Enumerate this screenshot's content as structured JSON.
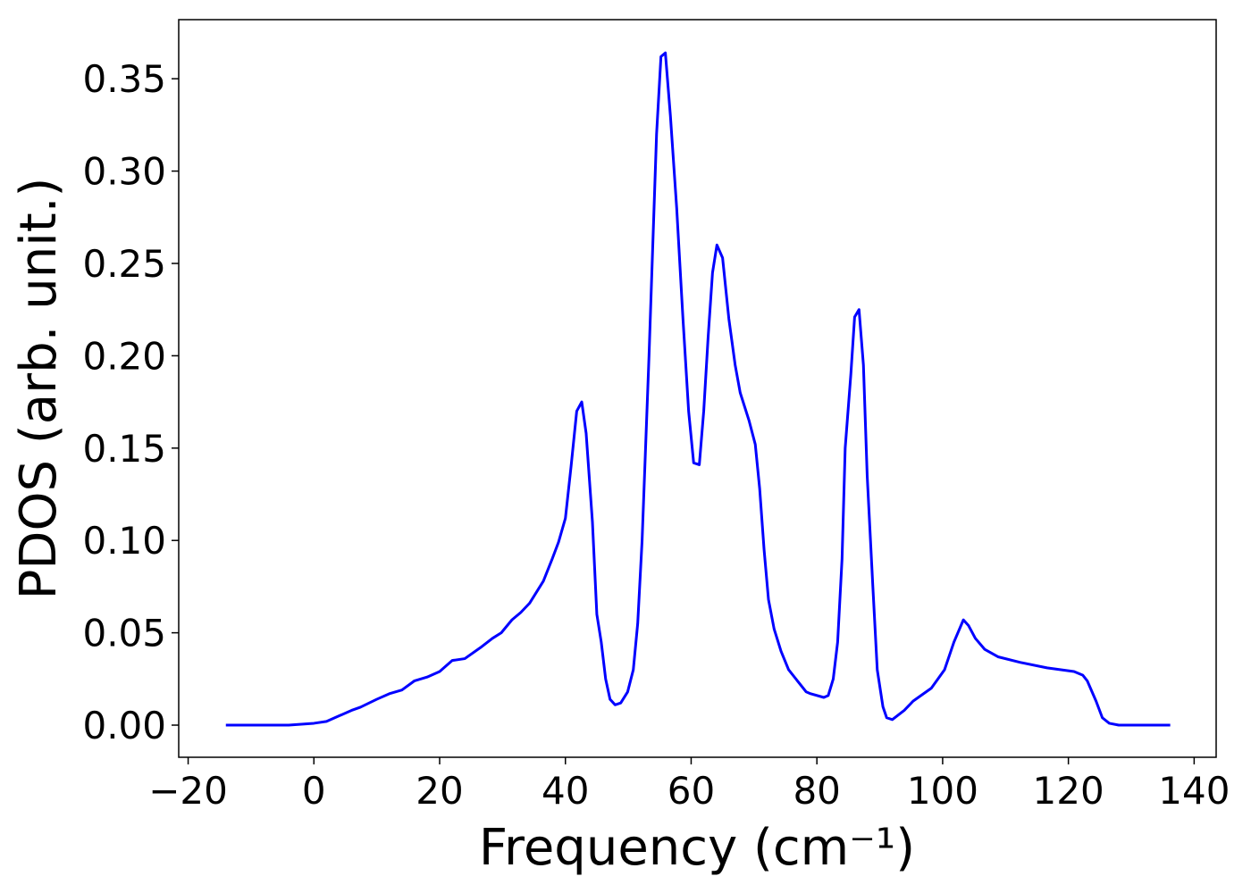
{
  "chart_data": {
    "type": "line",
    "xlabel": "Frequency (cm⁻¹)",
    "ylabel": "PDOS (arb. unit.)",
    "xlim": [
      -21.5,
      143.5
    ],
    "ylim": [
      -0.0174,
      0.382
    ],
    "xticks": [
      {
        "value": -20,
        "label": "−20"
      },
      0,
      20,
      40,
      60,
      80,
      100,
      120,
      140
    ],
    "yticks": [
      {
        "value": 0,
        "label": "0.00"
      },
      {
        "value": 0.05,
        "label": "0.05"
      },
      {
        "value": 0.1,
        "label": "0.10"
      },
      {
        "value": 0.15,
        "label": "0.15"
      },
      {
        "value": 0.2,
        "label": "0.20"
      },
      {
        "value": 0.25,
        "label": "0.25"
      },
      {
        "value": 0.3,
        "label": "0.30"
      },
      {
        "value": 0.35,
        "label": "0.35"
      }
    ],
    "x": [
      -14,
      -4,
      0,
      2,
      4,
      6,
      7.4,
      10,
      12,
      14,
      16,
      18,
      20,
      22,
      24,
      26.5,
      28.4,
      29.8,
      31.5,
      32.9,
      34.3,
      36.5,
      37.9,
      38.9,
      40,
      40.9,
      41.8,
      42.6,
      43.3,
      44.3,
      45,
      45.7,
      46.4,
      47.1,
      47.9,
      48.8,
      49.9,
      50.8,
      51.5,
      52.2,
      53.3,
      54.5,
      55.2,
      55.9,
      56.7,
      57.7,
      58.7,
      59.6,
      60.4,
      61.3,
      62,
      62.7,
      63.4,
      64.1,
      65,
      66,
      67,
      67.8,
      69.2,
      70.2,
      70.9,
      71.6,
      72.3,
      73.2,
      74.3,
      75.5,
      76.9,
      78.3,
      79,
      81.1,
      81.8,
      82.6,
      83.3,
      84,
      84.5,
      85.4,
      86,
      86.7,
      87.4,
      88,
      88.9,
      89.6,
      90.5,
      91.1,
      92,
      93.9,
      95.3,
      98.2,
      100.3,
      101.8,
      103.3,
      104.1,
      105.2,
      106.7,
      108.8,
      112.3,
      116.6,
      120.9,
      122.3,
      123,
      124.4,
      125.4,
      126.5,
      128,
      136.2
    ],
    "series": [
      {
        "name": "PDOS",
        "color": "#0000ff",
        "values": [
          0,
          0,
          0.001,
          0.002,
          0.005,
          0.008,
          0.0097,
          0.014,
          0.017,
          0.019,
          0.024,
          0.026,
          0.029,
          0.035,
          0.036,
          0.042,
          0.047,
          0.05,
          0.057,
          0.061,
          0.066,
          0.078,
          0.09,
          0.099,
          0.112,
          0.14,
          0.17,
          0.175,
          0.158,
          0.11,
          0.06,
          0.045,
          0.025,
          0.014,
          0.011,
          0.012,
          0.018,
          0.03,
          0.055,
          0.1,
          0.2,
          0.32,
          0.362,
          0.364,
          0.33,
          0.28,
          0.22,
          0.17,
          0.142,
          0.141,
          0.17,
          0.21,
          0.245,
          0.26,
          0.253,
          0.22,
          0.195,
          0.18,
          0.165,
          0.152,
          0.128,
          0.095,
          0.068,
          0.052,
          0.04,
          0.03,
          0.024,
          0.018,
          0.017,
          0.015,
          0.016,
          0.025,
          0.045,
          0.09,
          0.15,
          0.19,
          0.221,
          0.225,
          0.195,
          0.135,
          0.075,
          0.03,
          0.01,
          0.004,
          0.003,
          0.008,
          0.013,
          0.02,
          0.03,
          0.045,
          0.057,
          0.054,
          0.047,
          0.041,
          0.037,
          0.034,
          0.031,
          0.029,
          0.027,
          0.024,
          0.013,
          0.004,
          0.001,
          0,
          0
        ]
      }
    ]
  }
}
